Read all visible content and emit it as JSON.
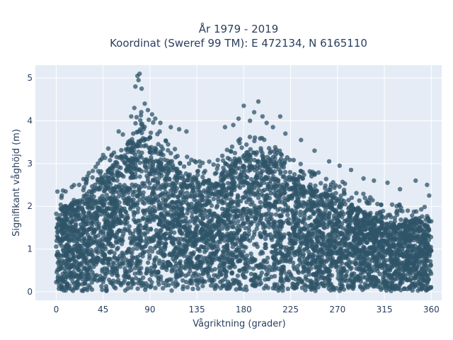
{
  "chart_data": {
    "type": "scatter",
    "title": "År 1979 - 2019",
    "subtitle": "Koordinat (Sweref 99 TM): E 472134, N 6165110",
    "xlabel": "Vågriktning (grader)",
    "ylabel": "Signifikant våghöjd (m)",
    "xlim": [
      -20,
      370
    ],
    "ylim": [
      -0.2,
      5.3
    ],
    "x_ticks": [
      0,
      45,
      90,
      135,
      180,
      225,
      270,
      315,
      360
    ],
    "y_ticks": [
      0,
      1,
      2,
      3,
      4,
      5
    ],
    "grid": true,
    "legend": "none",
    "colors": {
      "marker": "#2f5468",
      "plot_bg": "#e5ecf6",
      "grid": "#ffffff"
    },
    "series": [
      {
        "envelope": {
          "x": [
            0,
            10,
            20,
            30,
            45,
            60,
            70,
            80,
            90,
            100,
            110,
            120,
            135,
            150,
            160,
            170,
            180,
            190,
            200,
            210,
            225,
            240,
            255,
            270,
            285,
            300,
            315,
            330,
            345,
            360
          ],
          "y_max": [
            1.9,
            2.0,
            2.1,
            2.3,
            2.7,
            3.1,
            3.5,
            3.8,
            3.6,
            3.3,
            3.0,
            2.8,
            2.6,
            2.6,
            2.8,
            3.0,
            3.2,
            3.3,
            3.2,
            3.0,
            2.7,
            2.5,
            2.3,
            2.2,
            2.0,
            1.8,
            1.6,
            1.6,
            1.7,
            1.8
          ]
        },
        "outliers": [
          {
            "x": 78,
            "y": 5.05
          },
          {
            "x": 80,
            "y": 5.1
          },
          {
            "x": 79,
            "y": 4.95
          },
          {
            "x": 76,
            "y": 4.8
          },
          {
            "x": 82,
            "y": 4.75
          },
          {
            "x": 75,
            "y": 4.3
          },
          {
            "x": 85,
            "y": 4.4
          },
          {
            "x": 88,
            "y": 4.25
          },
          {
            "x": 72,
            "y": 4.1
          },
          {
            "x": 92,
            "y": 4.15
          },
          {
            "x": 95,
            "y": 4.05
          },
          {
            "x": 100,
            "y": 3.95
          },
          {
            "x": 110,
            "y": 3.85
          },
          {
            "x": 118,
            "y": 3.8
          },
          {
            "x": 125,
            "y": 3.75
          },
          {
            "x": 60,
            "y": 3.75
          },
          {
            "x": 50,
            "y": 3.35
          },
          {
            "x": 45,
            "y": 3.2
          },
          {
            "x": 40,
            "y": 3.0
          },
          {
            "x": 162,
            "y": 3.85
          },
          {
            "x": 170,
            "y": 3.9
          },
          {
            "x": 175,
            "y": 4.05
          },
          {
            "x": 180,
            "y": 4.35
          },
          {
            "x": 186,
            "y": 4.0
          },
          {
            "x": 190,
            "y": 4.2
          },
          {
            "x": 194,
            "y": 4.45
          },
          {
            "x": 198,
            "y": 4.1
          },
          {
            "x": 202,
            "y": 3.95
          },
          {
            "x": 208,
            "y": 3.85
          },
          {
            "x": 215,
            "y": 4.1
          },
          {
            "x": 220,
            "y": 3.7
          },
          {
            "x": 235,
            "y": 3.55
          },
          {
            "x": 248,
            "y": 3.3
          },
          {
            "x": 262,
            "y": 3.05
          },
          {
            "x": 272,
            "y": 2.95
          },
          {
            "x": 283,
            "y": 2.85
          },
          {
            "x": 295,
            "y": 2.65
          },
          {
            "x": 305,
            "y": 2.6
          },
          {
            "x": 318,
            "y": 2.55
          },
          {
            "x": 330,
            "y": 2.4
          },
          {
            "x": 345,
            "y": 2.6
          },
          {
            "x": 356,
            "y": 2.5
          },
          {
            "x": 358,
            "y": 2.25
          },
          {
            "x": 5,
            "y": 2.2
          },
          {
            "x": 15,
            "y": 2.45
          },
          {
            "x": 22,
            "y": 2.5
          },
          {
            "x": 30,
            "y": 2.7
          }
        ]
      }
    ]
  }
}
